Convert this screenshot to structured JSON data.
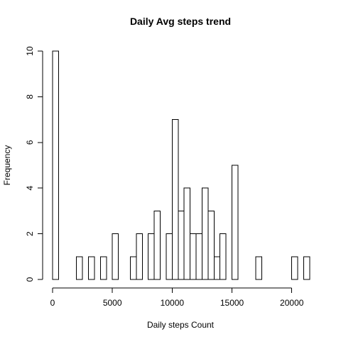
{
  "chart_data": {
    "type": "bar",
    "title": "Daily Avg steps trend",
    "xlabel": "Daily steps Count",
    "ylabel": "Frequency",
    "xlim": [
      0,
      21500
    ],
    "ylim": [
      0,
      10
    ],
    "xticks": [
      0,
      5000,
      10000,
      15000,
      20000
    ],
    "yticks": [
      0,
      2,
      4,
      6,
      8,
      10
    ],
    "grid": false,
    "legend": "none",
    "bin_width": 500,
    "bins": [
      {
        "start": 0,
        "end": 500,
        "count": 10
      },
      {
        "start": 2000,
        "end": 2500,
        "count": 1
      },
      {
        "start": 3000,
        "end": 3500,
        "count": 1
      },
      {
        "start": 4000,
        "end": 4500,
        "count": 1
      },
      {
        "start": 5000,
        "end": 5500,
        "count": 2
      },
      {
        "start": 6500,
        "end": 7000,
        "count": 1
      },
      {
        "start": 7000,
        "end": 7500,
        "count": 2
      },
      {
        "start": 8000,
        "end": 8500,
        "count": 2
      },
      {
        "start": 8500,
        "end": 9000,
        "count": 3
      },
      {
        "start": 9500,
        "end": 10000,
        "count": 2
      },
      {
        "start": 10000,
        "end": 10500,
        "count": 7
      },
      {
        "start": 10500,
        "end": 11000,
        "count": 3
      },
      {
        "start": 11000,
        "end": 11500,
        "count": 4
      },
      {
        "start": 11500,
        "end": 12000,
        "count": 2
      },
      {
        "start": 12000,
        "end": 12500,
        "count": 2
      },
      {
        "start": 12500,
        "end": 13000,
        "count": 4
      },
      {
        "start": 13000,
        "end": 13500,
        "count": 3
      },
      {
        "start": 13500,
        "end": 14000,
        "count": 1
      },
      {
        "start": 14000,
        "end": 14500,
        "count": 2
      },
      {
        "start": 15000,
        "end": 15500,
        "count": 5
      },
      {
        "start": 17000,
        "end": 17500,
        "count": 1
      },
      {
        "start": 20000,
        "end": 20500,
        "count": 1
      },
      {
        "start": 21000,
        "end": 21500,
        "count": 1
      }
    ],
    "colors": {
      "bar_fill": "#ffffff",
      "bar_stroke": "#000000",
      "background": "#ffffff"
    }
  }
}
